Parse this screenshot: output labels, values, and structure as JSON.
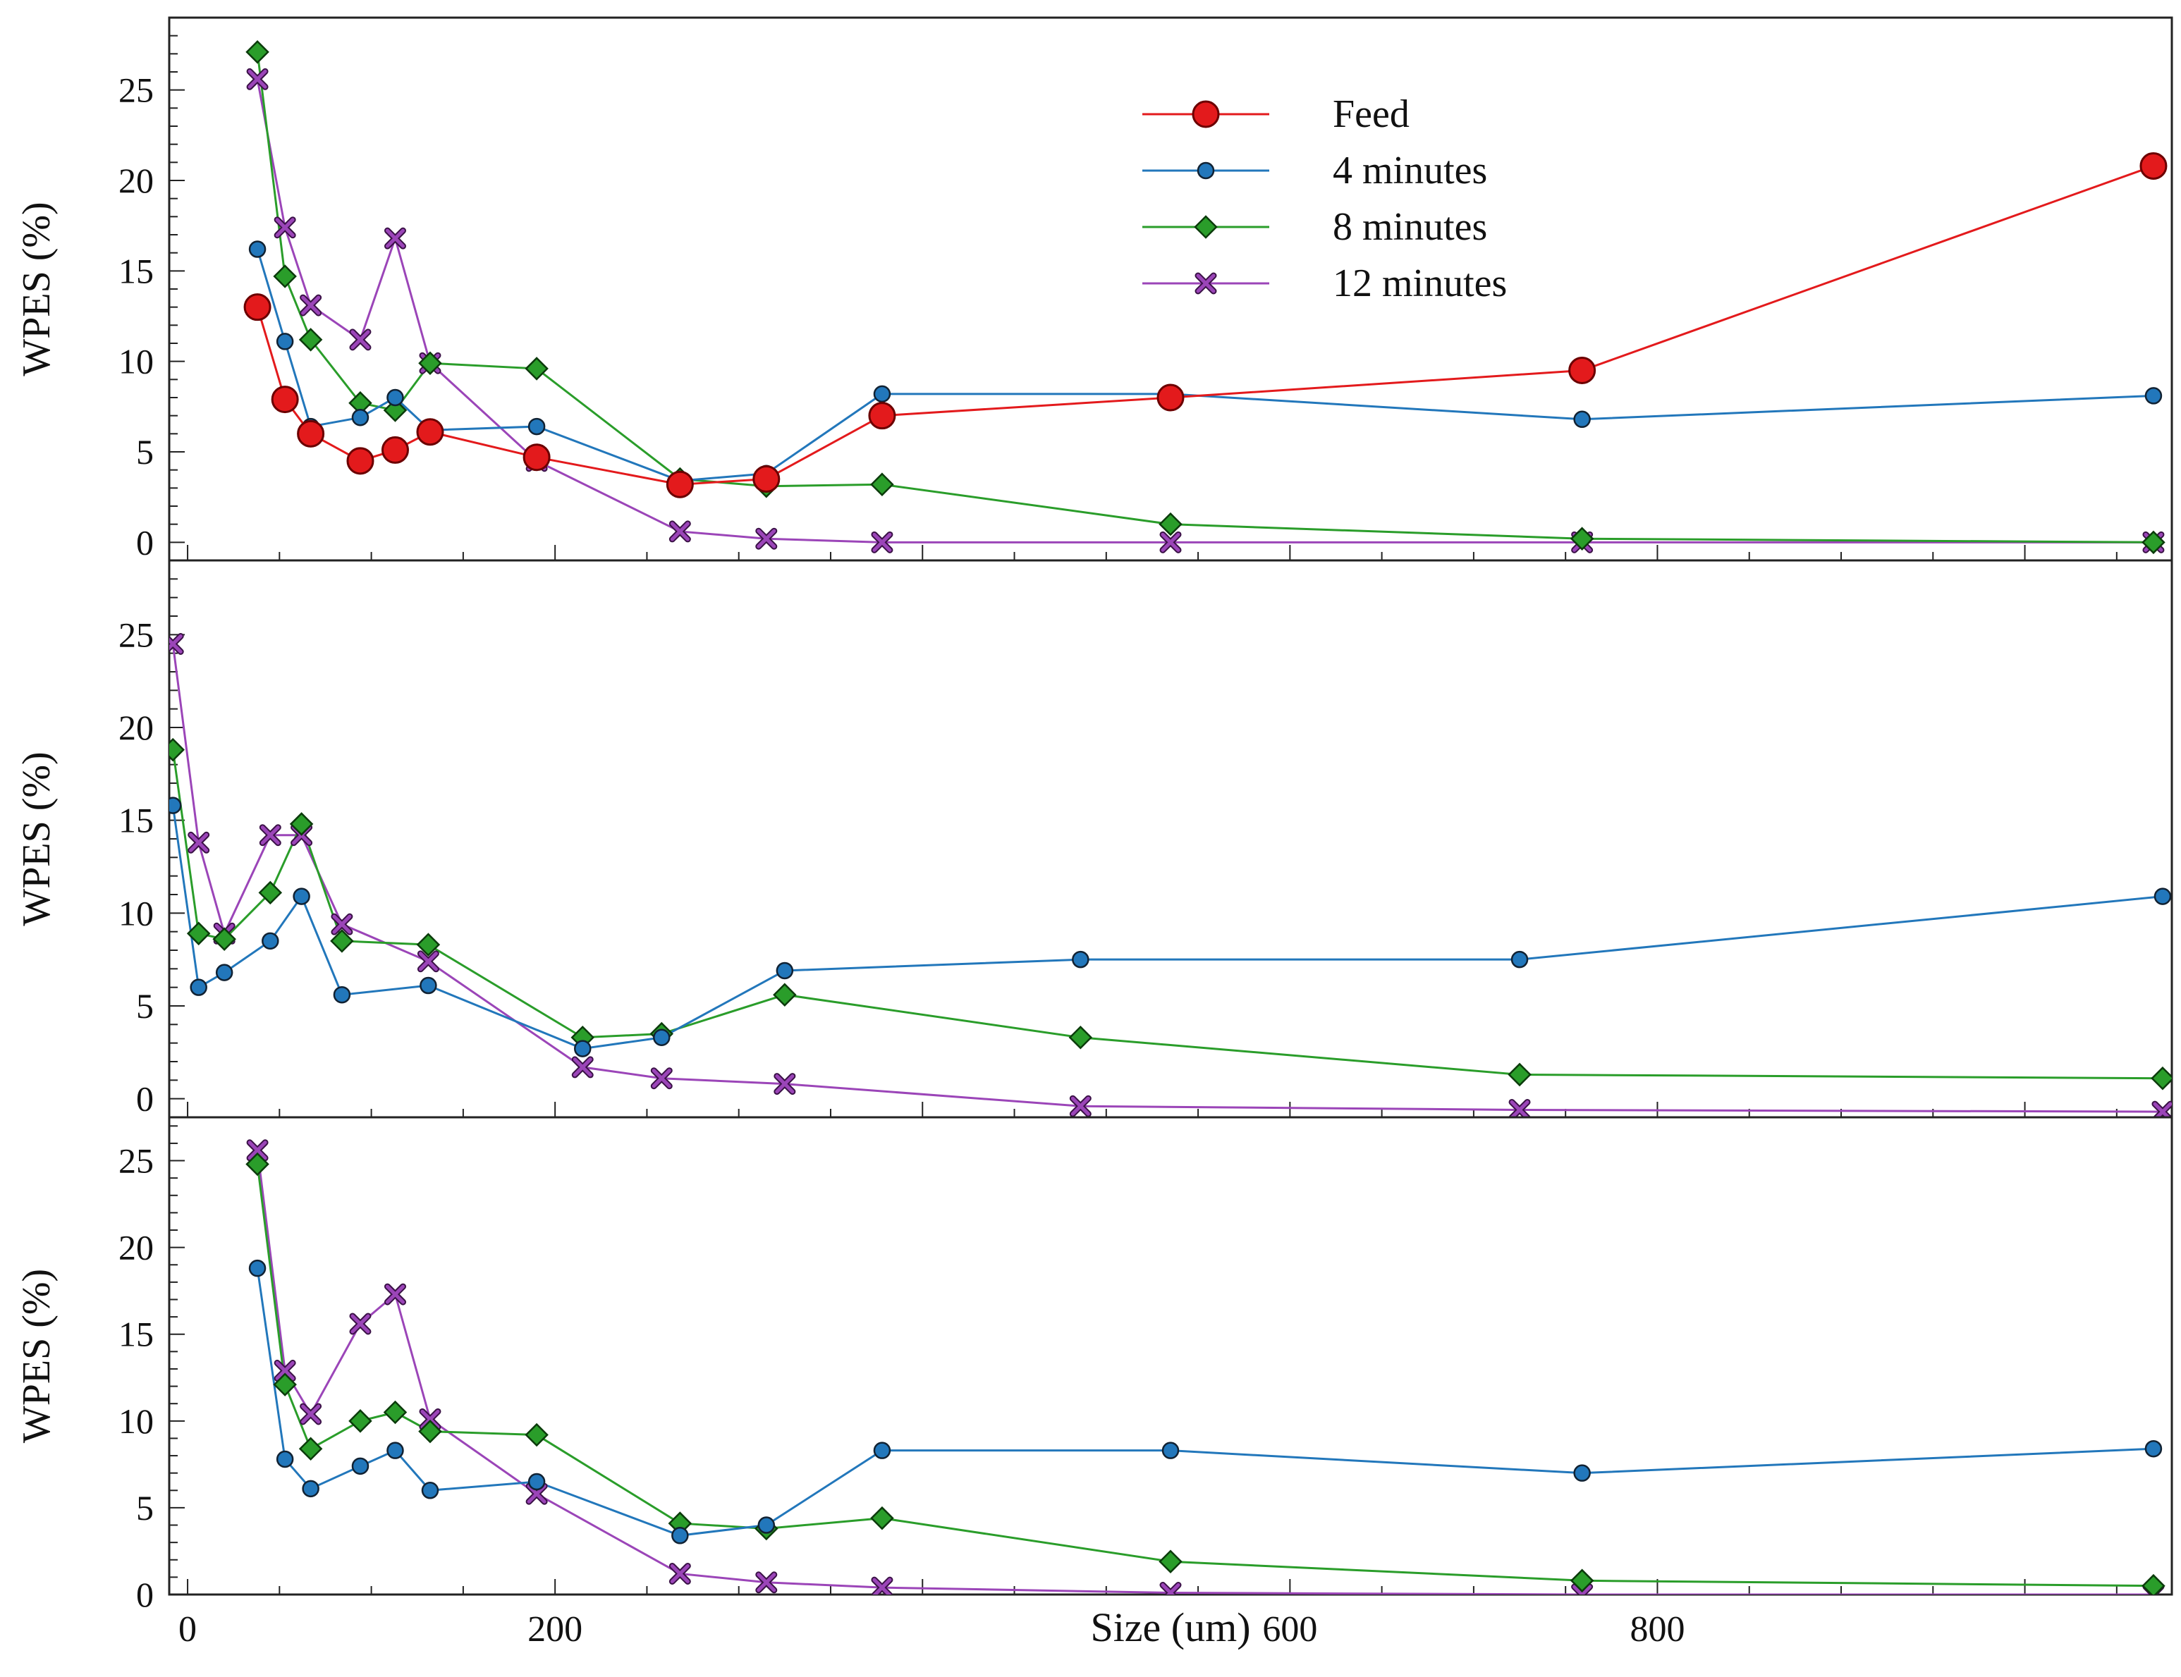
{
  "chart_data": [
    {
      "type": "line",
      "ylabel": "WPES (%)",
      "xlabel": "",
      "xlim": [
        -10,
        1080
      ],
      "ylim": [
        -1,
        29
      ],
      "y_ticks": [
        0,
        5,
        10,
        15,
        20,
        25
      ],
      "y_tick_labels": [
        "0",
        "5",
        "10",
        "15",
        "20",
        "25"
      ],
      "x_tick_labels": [],
      "legend": {
        "placement": "top-center",
        "entries": [
          {
            "label": "Feed",
            "series": "feed"
          },
          {
            "label": "4 minutes",
            "series": "4min"
          },
          {
            "label": "8 minutes",
            "series": "8min"
          },
          {
            "label": "12 minutes",
            "series": "12min"
          }
        ]
      },
      "series": [
        {
          "key": "feed",
          "name": "Feed",
          "color": "#e31a1c",
          "marker": "circle-large",
          "x": [
            38,
            53,
            67,
            94,
            113,
            132,
            190,
            268,
            315,
            378,
            535,
            759,
            1070
          ],
          "y": [
            13.0,
            7.9,
            6.0,
            4.5,
            5.1,
            6.1,
            4.7,
            3.2,
            3.5,
            7.0,
            8.0,
            9.5,
            20.8
          ]
        },
        {
          "key": "4min",
          "name": "4 minutes",
          "color": "#2277bb",
          "marker": "circle",
          "x": [
            38,
            53,
            67,
            94,
            113,
            132,
            190,
            268,
            315,
            378,
            535,
            759,
            1070
          ],
          "y": [
            16.2,
            11.1,
            6.4,
            6.9,
            8.0,
            6.2,
            6.4,
            3.4,
            3.8,
            8.2,
            8.2,
            6.8,
            8.1
          ]
        },
        {
          "key": "8min",
          "name": "8 minutes",
          "color": "#2a9d2a",
          "marker": "diamond",
          "x": [
            38,
            53,
            67,
            94,
            113,
            132,
            190,
            268,
            315,
            378,
            535,
            759,
            1070
          ],
          "y": [
            27.1,
            14.7,
            11.2,
            7.7,
            7.3,
            9.9,
            9.6,
            3.5,
            3.1,
            3.2,
            1.0,
            0.2,
            0.0
          ]
        },
        {
          "key": "12min",
          "name": "12 minutes",
          "color": "#9b45b8",
          "marker": "x",
          "x": [
            38,
            53,
            67,
            94,
            113,
            132,
            190,
            268,
            315,
            378,
            535,
            759,
            1070
          ],
          "y": [
            25.6,
            17.4,
            13.1,
            11.2,
            16.8,
            9.9,
            4.5,
            0.6,
            0.2,
            0.0,
            0.0,
            0.0,
            0.0
          ]
        }
      ]
    },
    {
      "type": "line",
      "ylabel": "WPES (%)",
      "xlabel": "",
      "xlim": [
        -10,
        1080
      ],
      "ylim": [
        -1,
        29
      ],
      "y_ticks": [
        0,
        5,
        10,
        15,
        20,
        25
      ],
      "y_tick_labels": [
        "0",
        "5",
        "10",
        "15",
        "20",
        "25"
      ],
      "x_tick_labels": [],
      "series": [
        {
          "key": "4min",
          "name": "4 minutes",
          "color": "#2277bb",
          "marker": "circle",
          "x": [
            -8,
            6,
            20,
            45,
            62,
            84,
            131,
            215,
            258,
            325,
            486,
            725,
            1075
          ],
          "y": [
            15.8,
            6.0,
            6.8,
            8.5,
            10.9,
            5.6,
            6.1,
            2.7,
            3.3,
            6.9,
            7.5,
            7.5,
            10.9
          ]
        },
        {
          "key": "8min",
          "name": "8 minutes",
          "color": "#2a9d2a",
          "marker": "diamond",
          "x": [
            -8,
            6,
            20,
            45,
            62,
            84,
            131,
            215,
            258,
            325,
            486,
            725,
            1075
          ],
          "y": [
            18.8,
            8.9,
            8.6,
            11.1,
            14.8,
            8.5,
            8.3,
            3.3,
            3.5,
            5.6,
            3.3,
            1.3,
            1.1
          ]
        },
        {
          "key": "12min",
          "name": "12 minutes",
          "color": "#9b45b8",
          "marker": "x",
          "x": [
            -8,
            6,
            20,
            45,
            62,
            84,
            131,
            215,
            258,
            325,
            486,
            725,
            1075
          ],
          "y": [
            24.5,
            13.8,
            8.9,
            14.2,
            14.2,
            9.4,
            7.4,
            1.7,
            1.1,
            0.8,
            -0.4,
            -0.6,
            -0.7
          ]
        }
      ]
    },
    {
      "type": "line",
      "ylabel": "WPES (%)",
      "xlabel": "Size (um)",
      "xlim": [
        -10,
        1080
      ],
      "ylim": [
        0,
        27.5
      ],
      "y_ticks": [
        0,
        5,
        10,
        15,
        20,
        25
      ],
      "y_tick_labels": [
        "0",
        "5",
        "10",
        "15",
        "20",
        "25"
      ],
      "x_ticks": [
        0,
        200,
        600,
        800
      ],
      "x_tick_labels": [
        "0",
        "200",
        "600",
        "800"
      ],
      "series": [
        {
          "key": "4min",
          "name": "4 minutes",
          "color": "#2277bb",
          "marker": "circle",
          "x": [
            38,
            53,
            67,
            94,
            113,
            132,
            190,
            268,
            315,
            378,
            535,
            759,
            1070
          ],
          "y": [
            18.8,
            7.8,
            6.1,
            7.4,
            8.3,
            6.0,
            6.5,
            3.4,
            4.0,
            8.3,
            8.3,
            7.0,
            8.4
          ]
        },
        {
          "key": "8min",
          "name": "8 minutes",
          "color": "#2a9d2a",
          "marker": "diamond",
          "x": [
            38,
            53,
            67,
            94,
            113,
            132,
            190,
            268,
            315,
            378,
            535,
            759,
            1070
          ],
          "y": [
            24.8,
            12.1,
            8.4,
            10.0,
            10.5,
            9.4,
            9.2,
            4.1,
            3.8,
            4.4,
            1.9,
            0.8,
            0.5
          ]
        },
        {
          "key": "12min",
          "name": "12 minutes",
          "color": "#9b45b8",
          "marker": "x",
          "x": [
            38,
            53,
            67,
            94,
            113,
            132,
            190,
            268,
            315,
            378,
            535,
            759,
            1070
          ],
          "y": [
            25.6,
            12.9,
            10.4,
            15.6,
            17.3,
            10.1,
            5.8,
            1.2,
            0.7,
            0.4,
            0.1,
            0.0,
            0.0
          ]
        }
      ]
    }
  ]
}
